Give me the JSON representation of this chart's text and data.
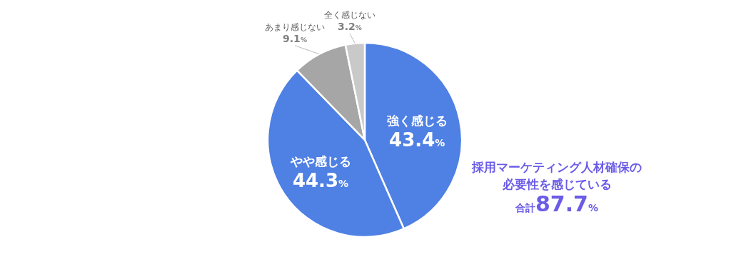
{
  "chart_data": {
    "type": "pie",
    "categories": [
      "強く感じる",
      "やや感じる",
      "あまり感じない",
      "全く感じない"
    ],
    "values": [
      43.4,
      44.3,
      9.1,
      3.2
    ],
    "colors": [
      "#4f80e4",
      "#4f80e4",
      "#a6a6a6",
      "#c9c9c9"
    ],
    "value_labels": [
      "43.4%",
      "44.3%",
      "9.1%",
      "3.2%"
    ],
    "annotations": [
      "採用マーケティング人材確保の必要性を感じている",
      "合計87.7%"
    ]
  }
}
